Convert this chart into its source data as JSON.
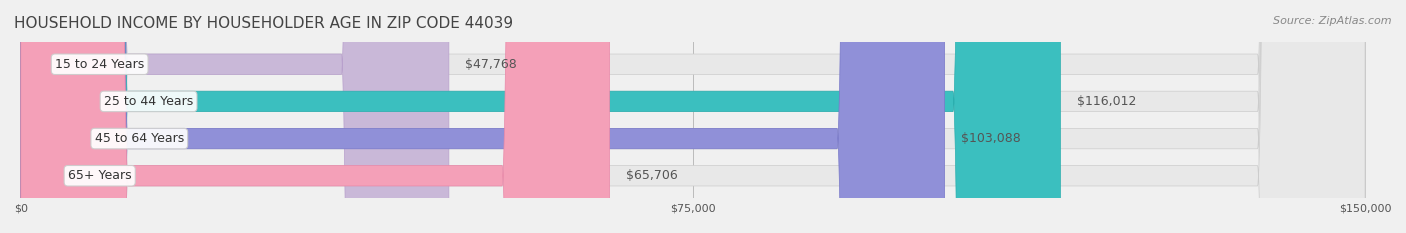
{
  "title": "HOUSEHOLD INCOME BY HOUSEHOLDER AGE IN ZIP CODE 44039",
  "source": "Source: ZipAtlas.com",
  "categories": [
    "15 to 24 Years",
    "25 to 44 Years",
    "45 to 64 Years",
    "65+ Years"
  ],
  "values": [
    47768,
    116012,
    103088,
    65706
  ],
  "bar_colors": [
    "#c9b8d8",
    "#3bbfbf",
    "#9090d8",
    "#f4a0b8"
  ],
  "bar_edge_colors": [
    "#b8a0cc",
    "#2aaeae",
    "#7878c8",
    "#e888a8"
  ],
  "label_colors": [
    "#555555",
    "#ffffff",
    "#ffffff",
    "#555555"
  ],
  "value_labels": [
    "$47,768",
    "$116,012",
    "$103,088",
    "$65,706"
  ],
  "x_max": 150000,
  "x_ticks": [
    0,
    75000,
    150000
  ],
  "x_tick_labels": [
    "$0",
    "$75,000",
    "$150,000"
  ],
  "background_color": "#f0f0f0",
  "bar_bg_color": "#e8e8e8",
  "title_fontsize": 11,
  "source_fontsize": 8,
  "label_fontsize": 9,
  "value_fontsize": 9
}
